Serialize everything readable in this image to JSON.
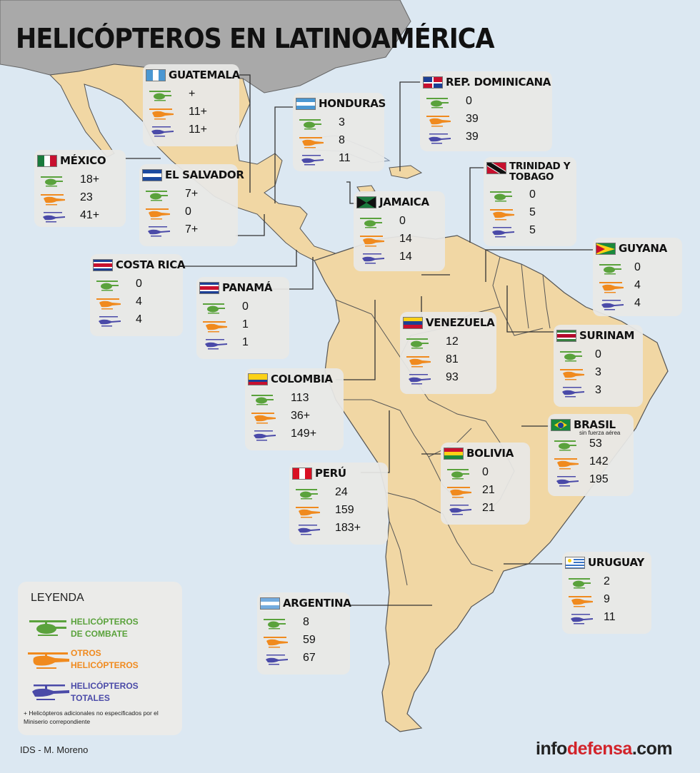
{
  "title": "HELICÓPTEROS EN LATINOAMÉRICA",
  "colors": {
    "combat": "#5aa23c",
    "other": "#f08a1e",
    "total": "#4a4aa8",
    "land": "#f1d7a4",
    "sea": "#dce8f2",
    "north": "#a9a9a9"
  },
  "countries": [
    {
      "id": "guatemala",
      "name": "GUATEMALA",
      "combat": "+",
      "other": "11+",
      "total": "11+"
    },
    {
      "id": "honduras",
      "name": "HONDURAS",
      "combat": "3",
      "other": "8",
      "total": "11"
    },
    {
      "id": "rep-dominicana",
      "name": "REP. DOMINICANA",
      "combat": "0",
      "other": "39",
      "total": "39"
    },
    {
      "id": "mexico",
      "name": "MÉXICO",
      "combat": "18+",
      "other": "23",
      "total": "41+"
    },
    {
      "id": "el-salvador",
      "name": "EL SALVADOR",
      "combat": "7+",
      "other": "0",
      "total": "7+"
    },
    {
      "id": "trinidad",
      "name": "TRINIDAD Y TOBAGO",
      "combat": "0",
      "other": "5",
      "total": "5"
    },
    {
      "id": "jamaica",
      "name": "JAMAICA",
      "combat": "0",
      "other": "14",
      "total": "14"
    },
    {
      "id": "guyana",
      "name": "GUYANA",
      "combat": "0",
      "other": "4",
      "total": "4"
    },
    {
      "id": "costa-rica",
      "name": "COSTA RICA",
      "combat": "0",
      "other": "4",
      "total": "4"
    },
    {
      "id": "panama",
      "name": "PANAMÁ",
      "combat": "0",
      "other": "1",
      "total": "1"
    },
    {
      "id": "venezuela",
      "name": "VENEZUELA",
      "combat": "12",
      "other": "81",
      "total": "93"
    },
    {
      "id": "surinam",
      "name": "SURINAM",
      "combat": "0",
      "other": "3",
      "total": "3"
    },
    {
      "id": "colombia",
      "name": "COLOMBIA",
      "combat": "113",
      "other": "36+",
      "total": "149+"
    },
    {
      "id": "brasil",
      "name": "BRASIL",
      "note": "sin fuerza aérea",
      "combat": "53",
      "other": "142",
      "total": "195"
    },
    {
      "id": "bolivia",
      "name": "BOLIVIA",
      "combat": "0",
      "other": "21",
      "total": "21"
    },
    {
      "id": "peru",
      "name": "PERÚ",
      "combat": "24",
      "other": "159",
      "total": "183+"
    },
    {
      "id": "uruguay",
      "name": "URUGUAY",
      "combat": "2",
      "other": "9",
      "total": "11"
    },
    {
      "id": "argentina",
      "name": "ARGENTINA",
      "combat": "8",
      "other": "59",
      "total": "67"
    }
  ],
  "legend": {
    "title": "LEYENDA",
    "combat": "HELICÓPTEROS\nDE COMBATE",
    "other": "OTROS\nHELICÓPTEROS",
    "total": "HELICÓPTEROS\nTOTALES",
    "note": "+ Helicópteros adicionales no especificados por el Miniserio correpondiente"
  },
  "credit": "IDS - M. Moreno",
  "brand": {
    "a": "info",
    "b": "defensa",
    "c": ".com"
  }
}
